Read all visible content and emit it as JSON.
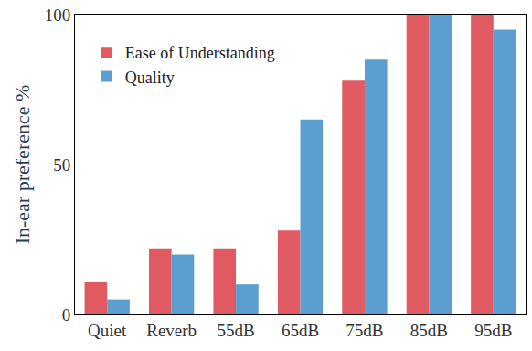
{
  "chart_data": {
    "type": "bar",
    "y_label": "In-ear preference %",
    "categories": [
      "Quiet",
      "Reverb",
      "55dB",
      "65dB",
      "75dB",
      "85dB",
      "95dB"
    ],
    "series": [
      {
        "name": "Ease of Understanding",
        "color": "#e05a62",
        "values": [
          11,
          22,
          22,
          28,
          78,
          100,
          100
        ]
      },
      {
        "name": "Quality",
        "color": "#5a9fd0",
        "values": [
          5,
          20,
          10,
          65,
          85,
          100,
          95
        ]
      }
    ],
    "ylim": [
      0,
      100
    ],
    "yticks": [
      0,
      50,
      100
    ],
    "grid": true,
    "legend": "upper left"
  }
}
